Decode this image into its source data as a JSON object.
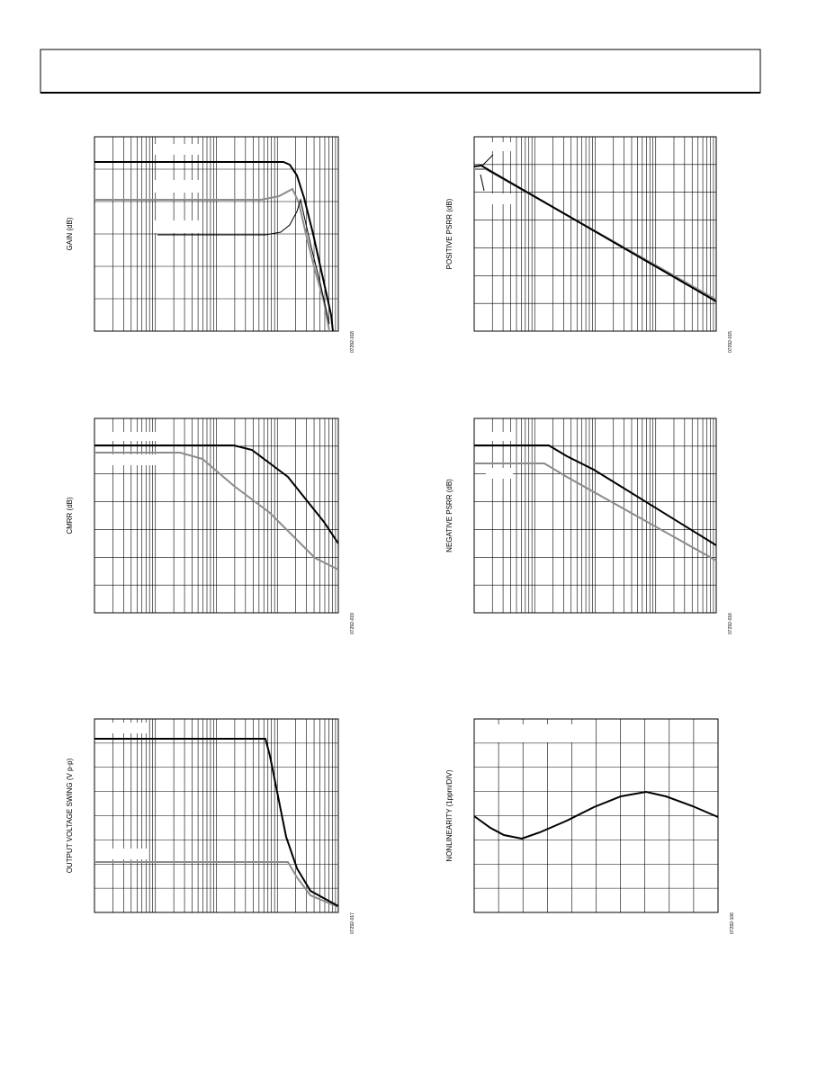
{
  "figures": [
    {
      "y_label": "GAIN (dB)",
      "id": "07292-018"
    },
    {
      "y_label": "POSITIVE PSRR (dB)",
      "id": "07292-015"
    },
    {
      "y_label": "CMRR (dB)",
      "id": "07292-019"
    },
    {
      "y_label": "NEGATIVE PSRR (dB)",
      "id": "07292-016"
    },
    {
      "y_label": "OUTPUT VOLTAGE SWING (V p-p)",
      "id": "07292-017"
    },
    {
      "y_label": "NONLINEARITY (1ppm/DIV)",
      "id": "07292-106"
    }
  ]
}
